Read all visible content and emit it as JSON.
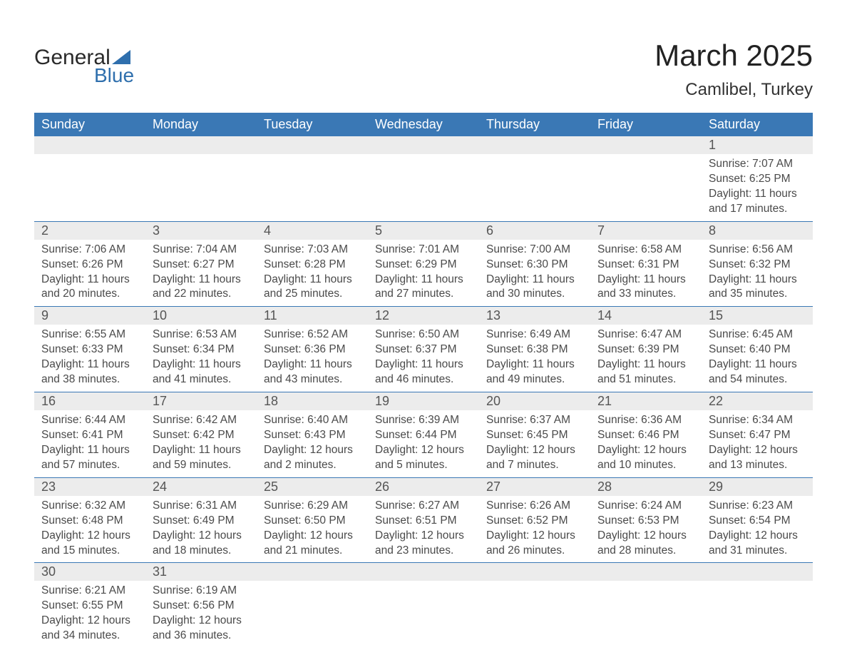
{
  "logo": {
    "line1": "General",
    "line2": "Blue",
    "triangle_color": "#2f6fad"
  },
  "title": "March 2025",
  "location": "Camlibel, Turkey",
  "headers": [
    "Sunday",
    "Monday",
    "Tuesday",
    "Wednesday",
    "Thursday",
    "Friday",
    "Saturday"
  ],
  "colors": {
    "header_bg": "#3a78b5",
    "header_text": "#ffffff",
    "daynum_bg": "#ececec",
    "row_divider": "#3a78b5",
    "body_text": "#4a4a4a"
  },
  "weeks": [
    [
      null,
      null,
      null,
      null,
      null,
      null,
      {
        "n": "1",
        "sunrise": "Sunrise: 7:07 AM",
        "sunset": "Sunset: 6:25 PM",
        "d1": "Daylight: 11 hours",
        "d2": "and 17 minutes."
      }
    ],
    [
      {
        "n": "2",
        "sunrise": "Sunrise: 7:06 AM",
        "sunset": "Sunset: 6:26 PM",
        "d1": "Daylight: 11 hours",
        "d2": "and 20 minutes."
      },
      {
        "n": "3",
        "sunrise": "Sunrise: 7:04 AM",
        "sunset": "Sunset: 6:27 PM",
        "d1": "Daylight: 11 hours",
        "d2": "and 22 minutes."
      },
      {
        "n": "4",
        "sunrise": "Sunrise: 7:03 AM",
        "sunset": "Sunset: 6:28 PM",
        "d1": "Daylight: 11 hours",
        "d2": "and 25 minutes."
      },
      {
        "n": "5",
        "sunrise": "Sunrise: 7:01 AM",
        "sunset": "Sunset: 6:29 PM",
        "d1": "Daylight: 11 hours",
        "d2": "and 27 minutes."
      },
      {
        "n": "6",
        "sunrise": "Sunrise: 7:00 AM",
        "sunset": "Sunset: 6:30 PM",
        "d1": "Daylight: 11 hours",
        "d2": "and 30 minutes."
      },
      {
        "n": "7",
        "sunrise": "Sunrise: 6:58 AM",
        "sunset": "Sunset: 6:31 PM",
        "d1": "Daylight: 11 hours",
        "d2": "and 33 minutes."
      },
      {
        "n": "8",
        "sunrise": "Sunrise: 6:56 AM",
        "sunset": "Sunset: 6:32 PM",
        "d1": "Daylight: 11 hours",
        "d2": "and 35 minutes."
      }
    ],
    [
      {
        "n": "9",
        "sunrise": "Sunrise: 6:55 AM",
        "sunset": "Sunset: 6:33 PM",
        "d1": "Daylight: 11 hours",
        "d2": "and 38 minutes."
      },
      {
        "n": "10",
        "sunrise": "Sunrise: 6:53 AM",
        "sunset": "Sunset: 6:34 PM",
        "d1": "Daylight: 11 hours",
        "d2": "and 41 minutes."
      },
      {
        "n": "11",
        "sunrise": "Sunrise: 6:52 AM",
        "sunset": "Sunset: 6:36 PM",
        "d1": "Daylight: 11 hours",
        "d2": "and 43 minutes."
      },
      {
        "n": "12",
        "sunrise": "Sunrise: 6:50 AM",
        "sunset": "Sunset: 6:37 PM",
        "d1": "Daylight: 11 hours",
        "d2": "and 46 minutes."
      },
      {
        "n": "13",
        "sunrise": "Sunrise: 6:49 AM",
        "sunset": "Sunset: 6:38 PM",
        "d1": "Daylight: 11 hours",
        "d2": "and 49 minutes."
      },
      {
        "n": "14",
        "sunrise": "Sunrise: 6:47 AM",
        "sunset": "Sunset: 6:39 PM",
        "d1": "Daylight: 11 hours",
        "d2": "and 51 minutes."
      },
      {
        "n": "15",
        "sunrise": "Sunrise: 6:45 AM",
        "sunset": "Sunset: 6:40 PM",
        "d1": "Daylight: 11 hours",
        "d2": "and 54 minutes."
      }
    ],
    [
      {
        "n": "16",
        "sunrise": "Sunrise: 6:44 AM",
        "sunset": "Sunset: 6:41 PM",
        "d1": "Daylight: 11 hours",
        "d2": "and 57 minutes."
      },
      {
        "n": "17",
        "sunrise": "Sunrise: 6:42 AM",
        "sunset": "Sunset: 6:42 PM",
        "d1": "Daylight: 11 hours",
        "d2": "and 59 minutes."
      },
      {
        "n": "18",
        "sunrise": "Sunrise: 6:40 AM",
        "sunset": "Sunset: 6:43 PM",
        "d1": "Daylight: 12 hours",
        "d2": "and 2 minutes."
      },
      {
        "n": "19",
        "sunrise": "Sunrise: 6:39 AM",
        "sunset": "Sunset: 6:44 PM",
        "d1": "Daylight: 12 hours",
        "d2": "and 5 minutes."
      },
      {
        "n": "20",
        "sunrise": "Sunrise: 6:37 AM",
        "sunset": "Sunset: 6:45 PM",
        "d1": "Daylight: 12 hours",
        "d2": "and 7 minutes."
      },
      {
        "n": "21",
        "sunrise": "Sunrise: 6:36 AM",
        "sunset": "Sunset: 6:46 PM",
        "d1": "Daylight: 12 hours",
        "d2": "and 10 minutes."
      },
      {
        "n": "22",
        "sunrise": "Sunrise: 6:34 AM",
        "sunset": "Sunset: 6:47 PM",
        "d1": "Daylight: 12 hours",
        "d2": "and 13 minutes."
      }
    ],
    [
      {
        "n": "23",
        "sunrise": "Sunrise: 6:32 AM",
        "sunset": "Sunset: 6:48 PM",
        "d1": "Daylight: 12 hours",
        "d2": "and 15 minutes."
      },
      {
        "n": "24",
        "sunrise": "Sunrise: 6:31 AM",
        "sunset": "Sunset: 6:49 PM",
        "d1": "Daylight: 12 hours",
        "d2": "and 18 minutes."
      },
      {
        "n": "25",
        "sunrise": "Sunrise: 6:29 AM",
        "sunset": "Sunset: 6:50 PM",
        "d1": "Daylight: 12 hours",
        "d2": "and 21 minutes."
      },
      {
        "n": "26",
        "sunrise": "Sunrise: 6:27 AM",
        "sunset": "Sunset: 6:51 PM",
        "d1": "Daylight: 12 hours",
        "d2": "and 23 minutes."
      },
      {
        "n": "27",
        "sunrise": "Sunrise: 6:26 AM",
        "sunset": "Sunset: 6:52 PM",
        "d1": "Daylight: 12 hours",
        "d2": "and 26 minutes."
      },
      {
        "n": "28",
        "sunrise": "Sunrise: 6:24 AM",
        "sunset": "Sunset: 6:53 PM",
        "d1": "Daylight: 12 hours",
        "d2": "and 28 minutes."
      },
      {
        "n": "29",
        "sunrise": "Sunrise: 6:23 AM",
        "sunset": "Sunset: 6:54 PM",
        "d1": "Daylight: 12 hours",
        "d2": "and 31 minutes."
      }
    ],
    [
      {
        "n": "30",
        "sunrise": "Sunrise: 6:21 AM",
        "sunset": "Sunset: 6:55 PM",
        "d1": "Daylight: 12 hours",
        "d2": "and 34 minutes."
      },
      {
        "n": "31",
        "sunrise": "Sunrise: 6:19 AM",
        "sunset": "Sunset: 6:56 PM",
        "d1": "Daylight: 12 hours",
        "d2": "and 36 minutes."
      },
      null,
      null,
      null,
      null,
      null
    ]
  ]
}
